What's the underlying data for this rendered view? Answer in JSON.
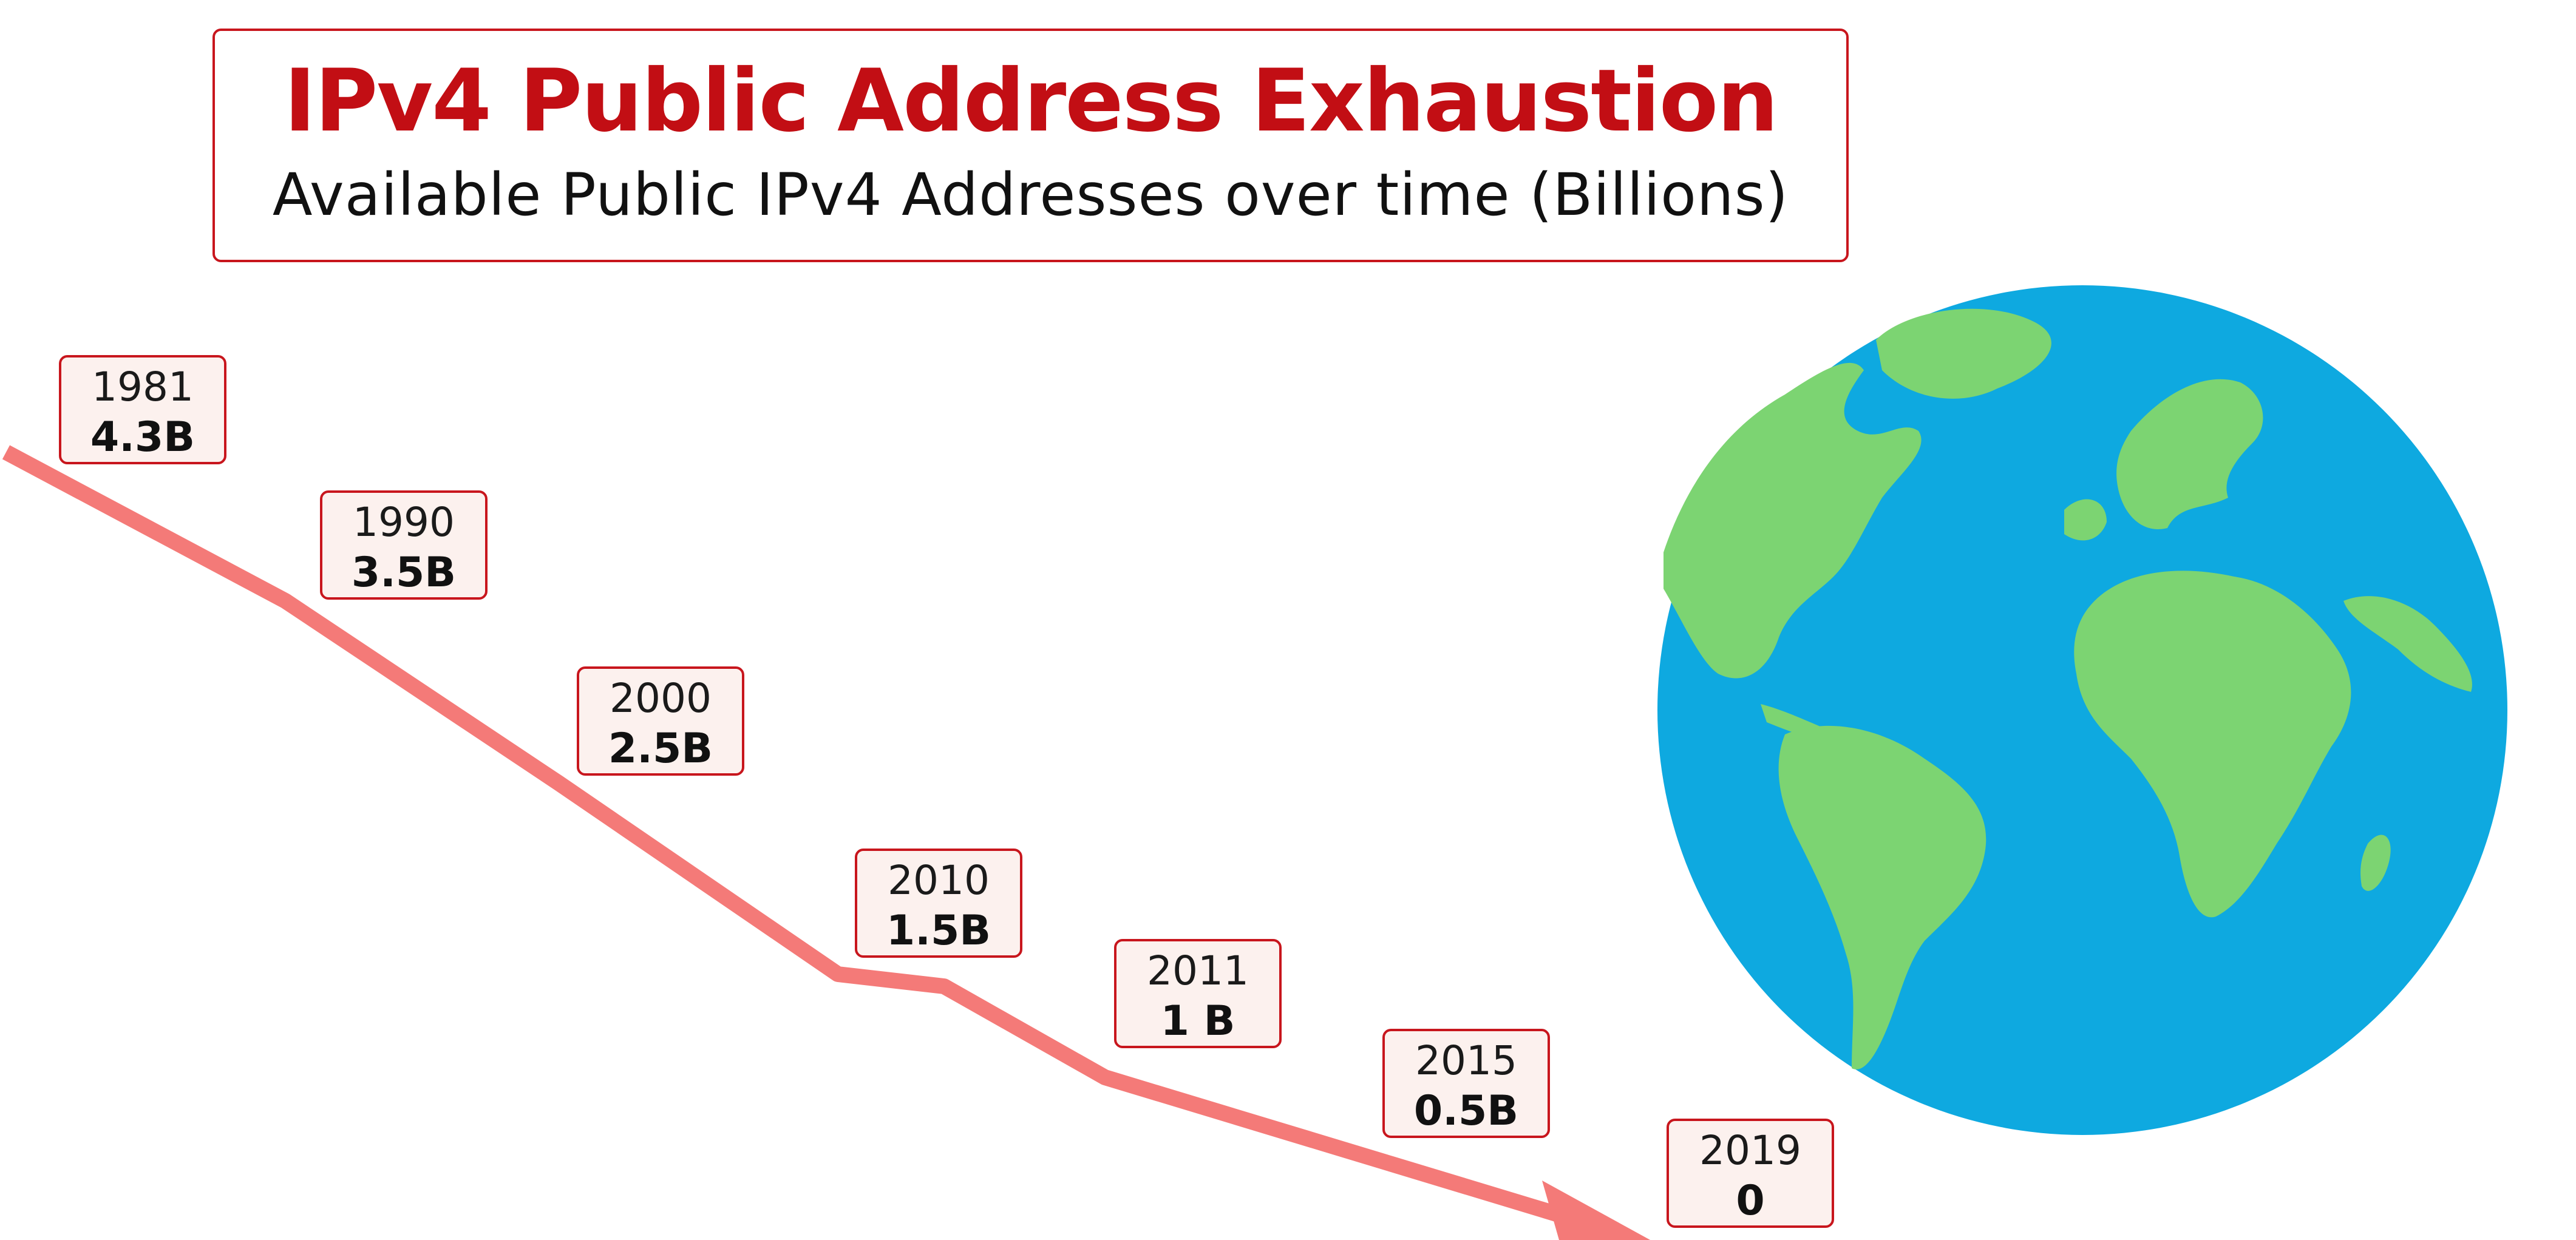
{
  "header": {
    "title": "IPv4 Public Address Exhaustion",
    "subtitle": "Available Public IPv4 Addresses over time (Billions)"
  },
  "chart_data": {
    "type": "line",
    "title": "IPv4 Public Address Exhaustion",
    "subtitle": "Available Public IPv4 Addresses over time (Billions)",
    "xlabel": "",
    "ylabel": "",
    "unit": "Billions",
    "x": [
      1981,
      1990,
      2000,
      2010,
      2011,
      2015,
      2019
    ],
    "values": [
      4.3,
      3.5,
      2.5,
      1.5,
      1.0,
      0.5,
      0.0
    ],
    "data_labels": [
      {
        "year": "1981",
        "value": "4.3B"
      },
      {
        "year": "1990",
        "value": "3.5B"
      },
      {
        "year": "2000",
        "value": "2.5B"
      },
      {
        "year": "2010",
        "value": "1.5B"
      },
      {
        "year": "2011",
        "value": "1 B"
      },
      {
        "year": "2015",
        "value": "0.5B"
      },
      {
        "year": "2019",
        "value": "0"
      }
    ],
    "line_color": "#f47a78",
    "label_border_color": "#c8161d",
    "label_fill_color": "#fcf1ee",
    "grid": false,
    "legend": "none"
  },
  "decoration": {
    "globe_icon": "earth-globe-icon",
    "ocean_color": "#0ea9e0",
    "land_color": "#7cd472"
  }
}
